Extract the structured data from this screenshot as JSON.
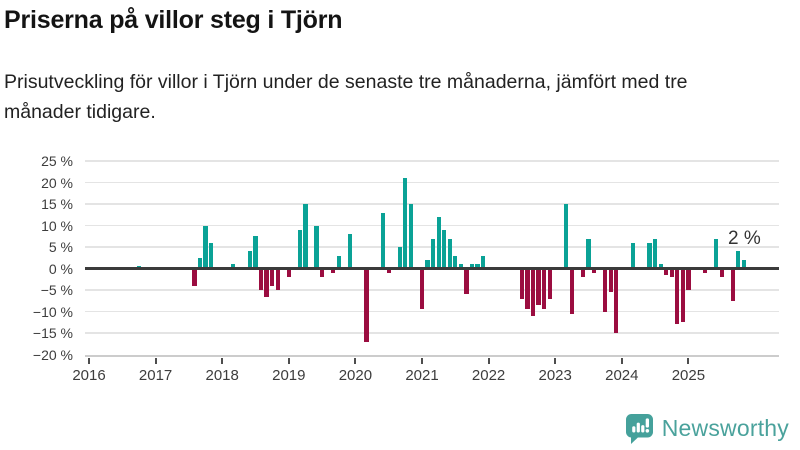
{
  "title": "Priserna på villor steg i Tjörn",
  "subtitle": "Prisutveckling för villor i Tjörn under de senaste tre månaderna, jämfört med tre månader tidigare.",
  "annotation": {
    "text": "2 %"
  },
  "branding": {
    "name": "Newsworthy",
    "icon": "newsworthy-speech-bubble-bar-chart-icon"
  },
  "colors": {
    "positive": "#0aa296",
    "negative": "#9b0d40",
    "zero_line": "#3b3b3b",
    "gridline": "#e4e4e4",
    "axis_line": "#cccccc",
    "text": "#3d3d3d",
    "brand_teal": "#4aa29c"
  },
  "chart_data": {
    "type": "bar",
    "unit": "%",
    "y_axis": {
      "min": -20,
      "max": 25,
      "ticks": [
        25,
        20,
        15,
        10,
        5,
        0,
        -5,
        -10,
        -15,
        -20
      ]
    },
    "x_axis": {
      "years": [
        "2016",
        "2017",
        "2018",
        "2019",
        "2020",
        "2021",
        "2022",
        "2023",
        "2024",
        "2025"
      ]
    },
    "grid": true,
    "last_value_label": "2 %",
    "series": [
      {
        "date": "2016-10",
        "value": 0.5
      },
      {
        "date": "2017-08",
        "value": -4
      },
      {
        "date": "2017-09",
        "value": 2.5
      },
      {
        "date": "2017-10",
        "value": 10
      },
      {
        "date": "2017-11",
        "value": 6
      },
      {
        "date": "2018-03",
        "value": 1
      },
      {
        "date": "2018-06",
        "value": 4
      },
      {
        "date": "2018-07",
        "value": 7.5
      },
      {
        "date": "2018-08",
        "value": -5
      },
      {
        "date": "2018-09",
        "value": -6.5
      },
      {
        "date": "2018-10",
        "value": -4
      },
      {
        "date": "2018-11",
        "value": -5
      },
      {
        "date": "2019-01",
        "value": -2
      },
      {
        "date": "2019-03",
        "value": 9
      },
      {
        "date": "2019-04",
        "value": 15
      },
      {
        "date": "2019-06",
        "value": 10
      },
      {
        "date": "2019-07",
        "value": -2
      },
      {
        "date": "2019-09",
        "value": -1
      },
      {
        "date": "2019-10",
        "value": 3
      },
      {
        "date": "2019-12",
        "value": 8
      },
      {
        "date": "2020-03",
        "value": -17
      },
      {
        "date": "2020-06",
        "value": 13
      },
      {
        "date": "2020-07",
        "value": -1
      },
      {
        "date": "2020-09",
        "value": 5
      },
      {
        "date": "2020-10",
        "value": 21
      },
      {
        "date": "2020-11",
        "value": 15
      },
      {
        "date": "2021-01",
        "value": -9.5
      },
      {
        "date": "2021-02",
        "value": 2
      },
      {
        "date": "2021-03",
        "value": 7
      },
      {
        "date": "2021-04",
        "value": 12
      },
      {
        "date": "2021-05",
        "value": 9
      },
      {
        "date": "2021-06",
        "value": 7
      },
      {
        "date": "2021-07",
        "value": 3
      },
      {
        "date": "2021-08",
        "value": 1
      },
      {
        "date": "2021-09",
        "value": -6
      },
      {
        "date": "2021-10",
        "value": 1
      },
      {
        "date": "2021-11",
        "value": 1
      },
      {
        "date": "2021-12",
        "value": 3
      },
      {
        "date": "2022-07",
        "value": -7
      },
      {
        "date": "2022-08",
        "value": -9.5
      },
      {
        "date": "2022-09",
        "value": -11
      },
      {
        "date": "2022-10",
        "value": -8.5
      },
      {
        "date": "2022-11",
        "value": -9.5
      },
      {
        "date": "2022-12",
        "value": -7
      },
      {
        "date": "2023-03",
        "value": 15
      },
      {
        "date": "2023-04",
        "value": -10.5
      },
      {
        "date": "2023-06",
        "value": -2
      },
      {
        "date": "2023-07",
        "value": 7
      },
      {
        "date": "2023-08",
        "value": -1
      },
      {
        "date": "2023-10",
        "value": -10
      },
      {
        "date": "2023-11",
        "value": -5.5
      },
      {
        "date": "2023-12",
        "value": -15
      },
      {
        "date": "2024-03",
        "value": 6
      },
      {
        "date": "2024-06",
        "value": 6
      },
      {
        "date": "2024-07",
        "value": 7
      },
      {
        "date": "2024-08",
        "value": 1
      },
      {
        "date": "2024-09",
        "value": -1.5
      },
      {
        "date": "2024-10",
        "value": -2
      },
      {
        "date": "2024-11",
        "value": -13
      },
      {
        "date": "2024-12",
        "value": -12.5
      },
      {
        "date": "2025-01",
        "value": -5
      },
      {
        "date": "2025-04",
        "value": -1
      },
      {
        "date": "2025-06",
        "value": 7
      },
      {
        "date": "2025-07",
        "value": -2
      },
      {
        "date": "2025-09",
        "value": -7.5
      },
      {
        "date": "2025-10",
        "value": 4
      },
      {
        "date": "2025-11",
        "value": 2
      }
    ]
  }
}
